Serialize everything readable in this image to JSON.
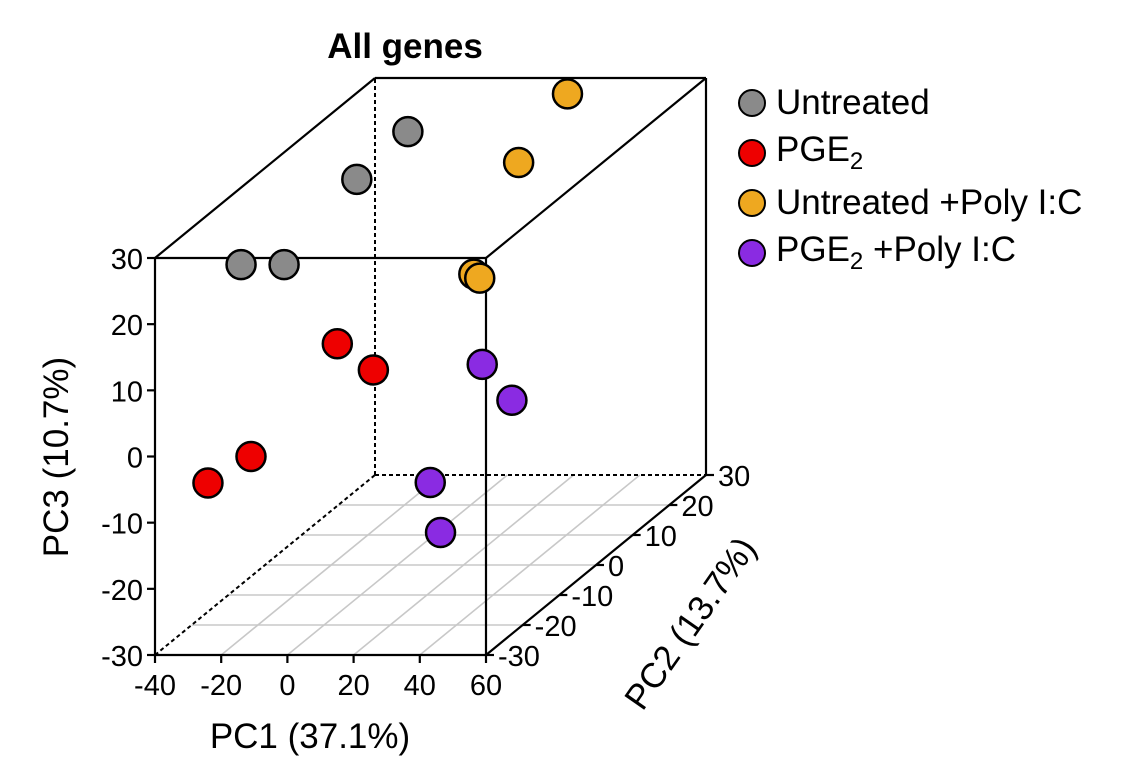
{
  "chart_data": {
    "type": "scatter3d",
    "title": "All genes",
    "xlabel": "PC1 (37.1%)",
    "ylabel": "PC2 (13.7%)",
    "zlabel": "PC3 (10.7%)",
    "xlim": [
      -40,
      60
    ],
    "ylim": [
      -30,
      30
    ],
    "zlim": [
      -30,
      30
    ],
    "xticks": [
      -40,
      -20,
      0,
      20,
      40,
      60
    ],
    "yticks": [
      -30,
      -20,
      -10,
      0,
      10,
      20,
      30
    ],
    "zticks": [
      -30,
      -20,
      -10,
      0,
      10,
      20,
      30
    ],
    "grid": "floor",
    "legend": "right",
    "series": [
      {
        "name": "Untreated",
        "label_main": "Untreated",
        "label_sub": "",
        "label_rest": "",
        "color": "#8a8a8a",
        "points": [
          [
            -14,
            -30,
            29
          ],
          [
            -1,
            -30,
            29
          ],
          [
            11,
            -21,
            37.8
          ],
          [
            22,
            -17,
            43.2
          ]
        ]
      },
      {
        "name": "PGE2",
        "label_main": "PGE",
        "label_sub": "2",
        "label_rest": "",
        "color": "#ee0000",
        "points": [
          [
            -24,
            -30,
            -4
          ],
          [
            -11,
            -30,
            0
          ],
          [
            4,
            -20,
            12.5
          ],
          [
            16,
            -21,
            9
          ]
        ]
      },
      {
        "name": "Untreated +Poly I:C",
        "label_main": "Untreated +Poly I:C",
        "label_sub": "",
        "label_rest": "",
        "color": "#eea820",
        "points": [
          [
            53,
            -27,
            26.2
          ],
          [
            57,
            -29,
            26.5
          ],
          [
            61,
            -22,
            40.8
          ],
          [
            68,
            -15,
            48
          ]
        ]
      },
      {
        "name": "PGE2 +Poly I:C",
        "label_main": "PGE",
        "label_sub": "2",
        "label_rest": " +Poly I:C",
        "color": "#8a2be2",
        "points": [
          [
            21,
            -10,
            -13
          ],
          [
            23,
            -9,
            -21
          ],
          [
            49,
            -13,
            0.8
          ],
          [
            50,
            -22,
            10.3
          ]
        ]
      }
    ]
  }
}
